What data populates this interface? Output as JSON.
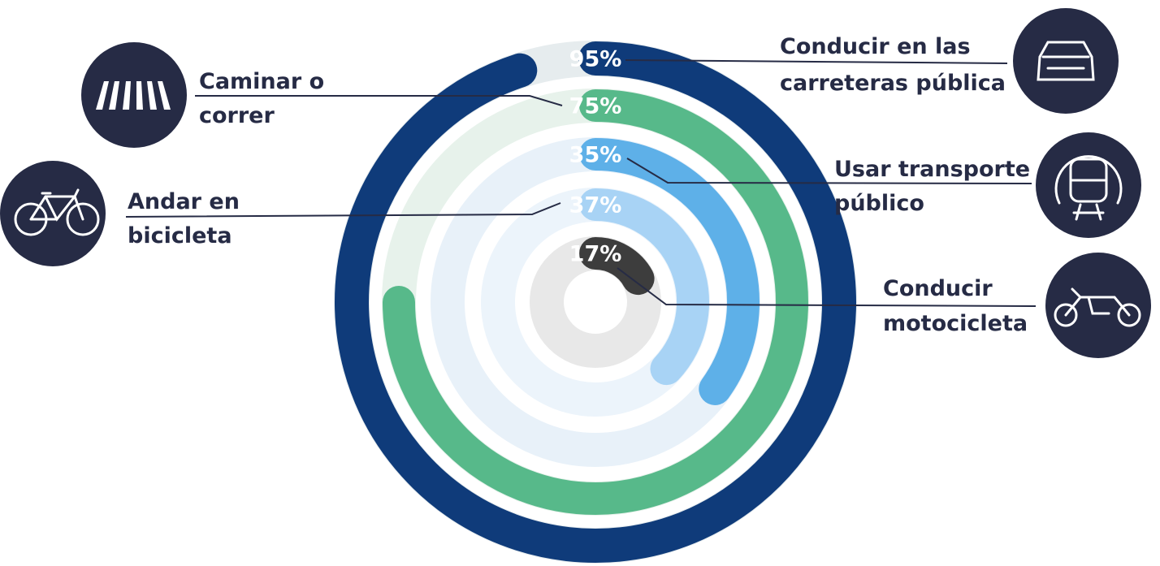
{
  "chart_data": {
    "type": "radial_bar",
    "categories": [
      [
        "Conducir en las",
        "carreteras pública"
      ],
      [
        "Caminar o",
        "correr"
      ],
      [
        "Usar transporte",
        "público"
      ],
      [
        "Andar en",
        "bicicleta"
      ],
      [
        "Conducir",
        "motocicleta"
      ]
    ],
    "values": [
      95,
      75,
      35,
      37,
      17
    ],
    "value_labels": [
      "95%",
      "75%",
      "35%",
      "37%",
      "17%"
    ],
    "colors": [
      "#0f3b7a",
      "#57b98a",
      "#5eb0e8",
      "#a8d3f5",
      "#3d3d3d"
    ],
    "track_colors": [
      "#e6ecee",
      "#e7f2eb",
      "#e8f1f9",
      "#ecf4fb",
      "#e8e8e8"
    ],
    "ylim": [
      0,
      100
    ]
  }
}
